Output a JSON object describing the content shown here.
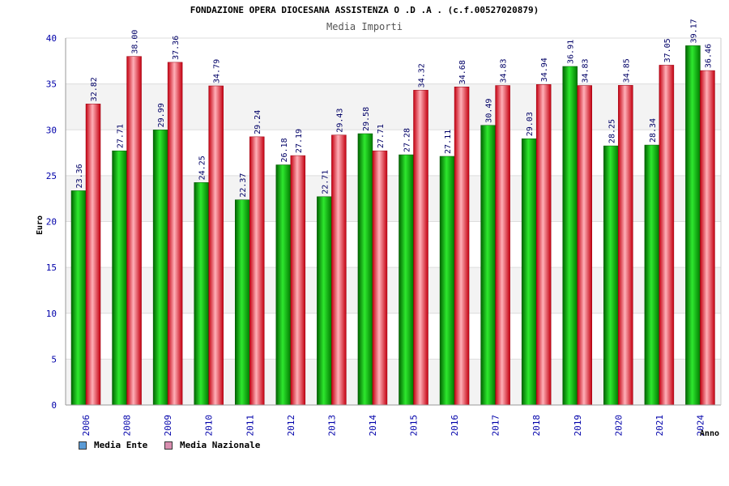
{
  "header": {
    "title": "FONDAZIONE OPERA DIOCESANA ASSISTENZA O .D .A . (c.f.00527020879)",
    "subtitle": "Media Importi"
  },
  "legend": {
    "items": [
      {
        "label": "Media Ente",
        "color": "#5b9bd5"
      },
      {
        "label": "Media Nazionale",
        "color": "#d98fb0"
      }
    ]
  },
  "chart_data": {
    "type": "bar",
    "title": "Media Importi",
    "xlabel": "Anno",
    "ylabel": "Euro",
    "ylim": [
      0,
      40
    ],
    "yticks": [
      0,
      5,
      10,
      15,
      20,
      25,
      30,
      35,
      40
    ],
    "grid": true,
    "legend_position": "bottom-left",
    "categories": [
      "2006",
      "2008",
      "2009",
      "2010",
      "2011",
      "2012",
      "2013",
      "2014",
      "2015",
      "2016",
      "2017",
      "2018",
      "2019",
      "2020",
      "2021",
      "2024"
    ],
    "series": [
      {
        "name": "Media Ente",
        "color": "#00b000",
        "values": [
          23.36,
          27.71,
          29.99,
          24.25,
          22.37,
          26.18,
          22.71,
          29.58,
          27.28,
          27.11,
          30.49,
          29.03,
          36.91,
          28.25,
          28.34,
          39.17
        ]
      },
      {
        "name": "Media Nazionale",
        "color": "#e00018",
        "values": [
          32.82,
          38.0,
          37.36,
          34.79,
          29.24,
          27.19,
          29.43,
          27.71,
          34.32,
          34.68,
          34.83,
          34.94,
          34.83,
          34.85,
          37.05,
          36.46
        ]
      }
    ]
  }
}
